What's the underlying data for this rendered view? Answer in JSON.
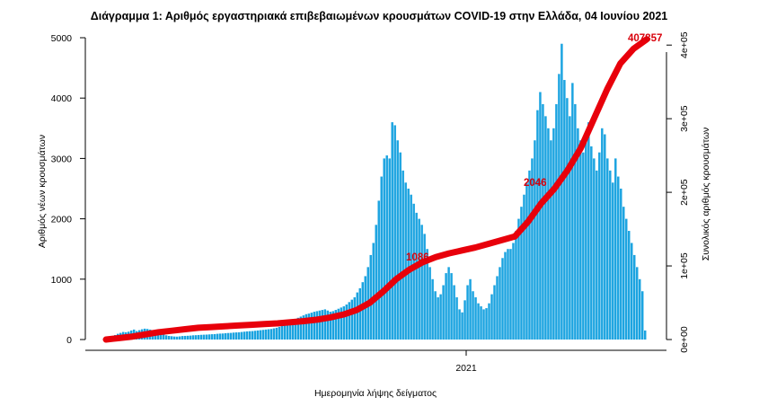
{
  "chart_data": {
    "type": "bar",
    "title": "Διάγραμμα 1: Αριθμός εργαστηριακά επιβεβαιωμένων κρουσμάτων COVID-19 στην Ελλάδα, 04 Ιουνίου 2021",
    "xlabel": "Ημερομηνία λήψης δείγματος",
    "ylabel_left": "Αριθμός νέων κρουσμάτων",
    "ylabel_right": "Συνολικός αριθμός κρουσμάτων",
    "x_tick_labels": [
      "2021"
    ],
    "y_left_ticks": [
      "0",
      "1000",
      "2000",
      "3000",
      "4000",
      "5000"
    ],
    "y_left_tick_values": [
      0,
      1000,
      2000,
      3000,
      4000,
      5000
    ],
    "y_right_ticks": [
      "0e+00",
      "1e+05",
      "2e+05",
      "3e+05",
      "4e+05"
    ],
    "y_right_tick_values": [
      0,
      100000,
      200000,
      300000,
      400000
    ],
    "ylim_left": [
      0,
      5000
    ],
    "ylim_right": [
      0,
      410000
    ],
    "grid": false,
    "series": [
      {
        "kind": "bar",
        "color": "#1aa3e0",
        "values": [
          18,
          40,
          60,
          75,
          95,
          110,
          125,
          120,
          130,
          150,
          165,
          140,
          155,
          170,
          180,
          175,
          165,
          150,
          135,
          120,
          100,
          85,
          70,
          60,
          55,
          50,
          48,
          52,
          58,
          60,
          62,
          65,
          70,
          72,
          75,
          78,
          80,
          82,
          85,
          88,
          90,
          95,
          98,
          100,
          105,
          108,
          110,
          115,
          118,
          120,
          125,
          130,
          135,
          138,
          140,
          145,
          150,
          155,
          160,
          165,
          170,
          175,
          185,
          195,
          210,
          230,
          250,
          270,
          300,
          320,
          340,
          360,
          380,
          400,
          420,
          430,
          445,
          460,
          470,
          480,
          490,
          500,
          480,
          460,
          470,
          490,
          510,
          530,
          550,
          580,
          620,
          660,
          700,
          780,
          850,
          950,
          1050,
          1200,
          1400,
          1600,
          1900,
          2300,
          2700,
          3000,
          3050,
          3000,
          3600,
          3550,
          3300,
          3100,
          2800,
          2600,
          2500,
          2400,
          2250,
          2100,
          2000,
          1900,
          1750,
          1500,
          1200,
          1000,
          800,
          700,
          750,
          900,
          1100,
          1200,
          1100,
          900,
          700,
          500,
          450,
          650,
          900,
          1000,
          800,
          700,
          600,
          550,
          500,
          520,
          600,
          750,
          900,
          1050,
          1200,
          1350,
          1450,
          1500,
          1500,
          1600,
          1800,
          2000,
          2200,
          2400,
          2600,
          2800,
          3000,
          3300,
          3800,
          4100,
          3900,
          3700,
          3500,
          3300,
          3500,
          3900,
          4400,
          4900,
          4300,
          4000,
          3700,
          4250,
          3900,
          3500,
          3300,
          3100,
          3300,
          3600,
          3200,
          3000,
          2800,
          3100,
          3500,
          3400,
          3000,
          2800,
          2600,
          3000,
          2700,
          2500,
          2200,
          2000,
          1800,
          1600,
          1400,
          1200,
          1000,
          800,
          150
        ]
      },
      {
        "kind": "cumulative-line",
        "color": "#e8000b",
        "values": [
          0,
          2000,
          4000,
          7000,
          10000,
          12000,
          14000,
          16000,
          17000,
          18000,
          19000,
          20000,
          21000,
          22000,
          23500,
          25000,
          27000,
          30000,
          34000,
          40000,
          50000,
          65000,
          82000,
          95000,
          105000,
          112000,
          117000,
          121000,
          125000,
          130000,
          135000,
          140000,
          160000,
          185000,
          205000,
          230000,
          260000,
          300000,
          340000,
          375000,
          395000,
          407857
        ]
      }
    ],
    "annotations": [
      "1086",
      "2046",
      "407857"
    ]
  }
}
